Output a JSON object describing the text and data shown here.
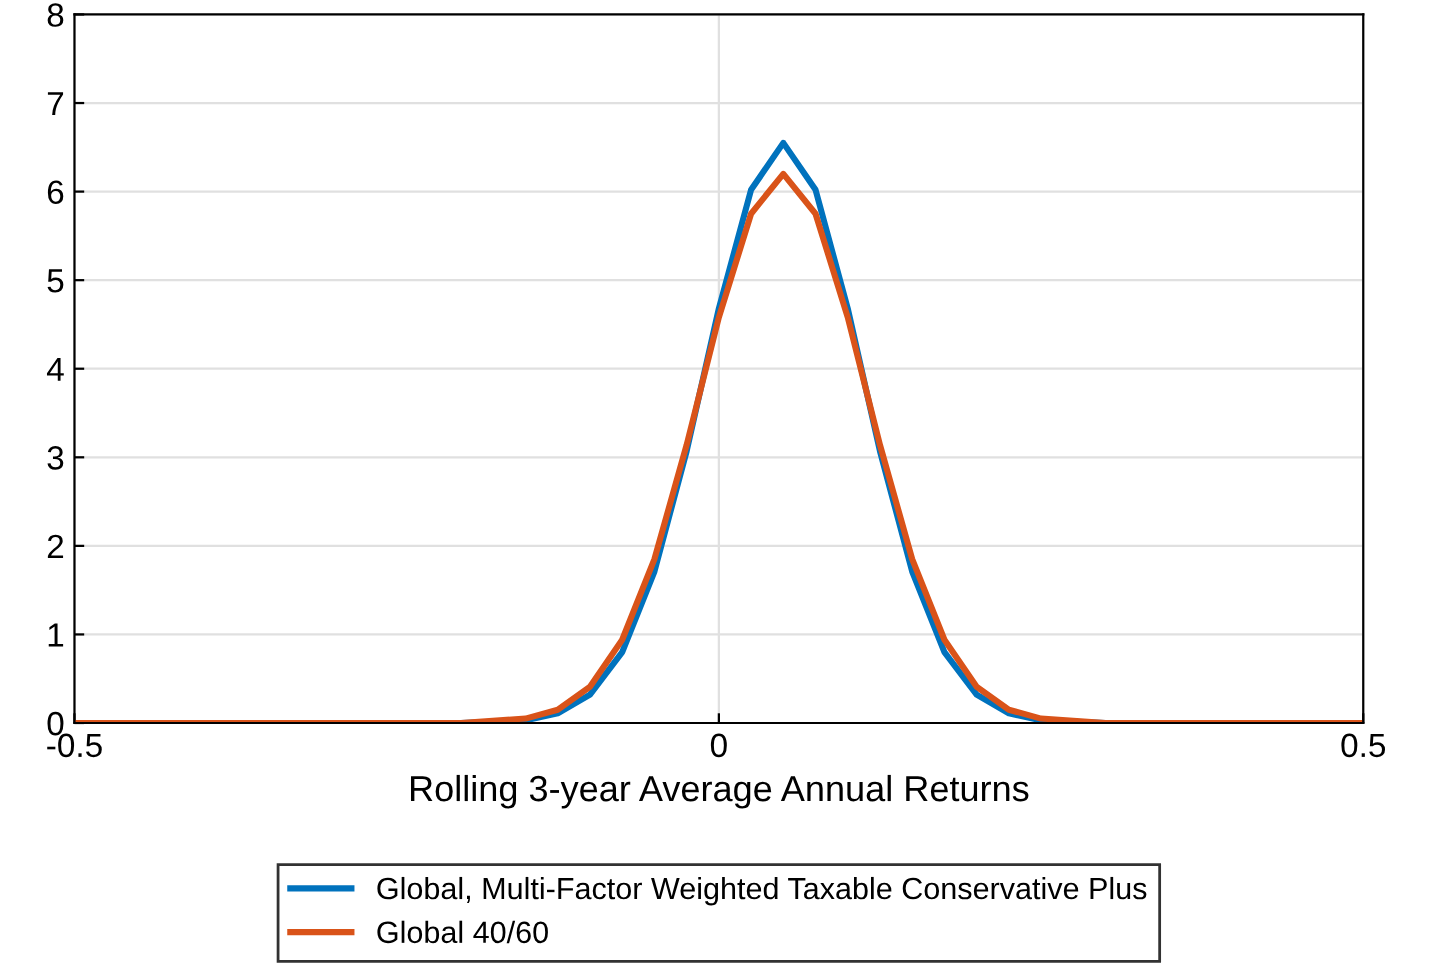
{
  "chart_data": {
    "type": "line",
    "xlabel": "Rolling 3-year Average Annual Returns",
    "xlim": [
      -0.5,
      0.5
    ],
    "xticks": [
      -0.5,
      0,
      0.5
    ],
    "ylim": [
      0,
      8
    ],
    "yticks": [
      0,
      1,
      2,
      3,
      4,
      5,
      6,
      7,
      8
    ],
    "grid": true,
    "legend": "bottom",
    "marker": "none",
    "line_style": "solid",
    "series": [
      {
        "name": "Global, Multi-Factor Weighted Taxable Conservative Plus",
        "color": "#0072bd",
        "x": [
          -0.5,
          -0.2,
          -0.15,
          -0.125,
          -0.1,
          -0.075,
          -0.05,
          -0.025,
          0,
          0.025,
          0.05,
          0.075,
          0.1,
          0.125,
          0.15,
          0.175,
          0.2,
          0.225,
          0.25,
          0.3,
          0.5
        ],
        "values": [
          0,
          0,
          0.03,
          0.11,
          0.32,
          0.8,
          1.71,
          3.07,
          4.68,
          6.02,
          6.55,
          6.02,
          4.68,
          3.07,
          1.71,
          0.8,
          0.32,
          0.11,
          0.03,
          0,
          0
        ]
      },
      {
        "name": "Global 40/60",
        "color": "#d95319",
        "x": [
          -0.5,
          -0.2,
          -0.15,
          -0.125,
          -0.1,
          -0.075,
          -0.05,
          -0.025,
          0,
          0.025,
          0.05,
          0.075,
          0.1,
          0.125,
          0.15,
          0.175,
          0.2,
          0.225,
          0.25,
          0.3,
          0.5
        ],
        "values": [
          0,
          0,
          0.05,
          0.15,
          0.41,
          0.94,
          1.85,
          3.14,
          4.58,
          5.75,
          6.2,
          5.75,
          4.58,
          3.14,
          1.85,
          0.94,
          0.41,
          0.15,
          0.05,
          0,
          0
        ]
      }
    ]
  }
}
